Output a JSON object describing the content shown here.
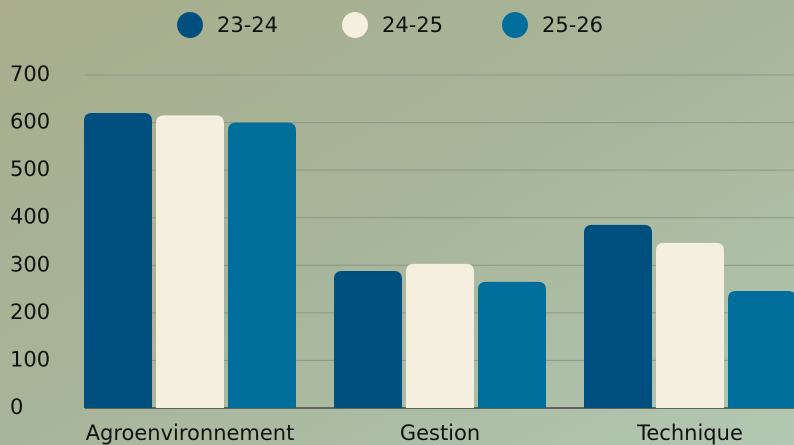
{
  "chart_data": {
    "type": "bar",
    "categories": [
      "Agroenvironnement",
      "Gestion",
      "Technique"
    ],
    "series": [
      {
        "name": "23-24",
        "color": "#00507f",
        "values": [
          620,
          288,
          385
        ]
      },
      {
        "name": "24-25",
        "color": "#f5efdf",
        "values": [
          615,
          303,
          347
        ]
      },
      {
        "name": "25-26",
        "color": "#006e9a",
        "values": [
          600,
          265,
          246
        ]
      }
    ],
    "ylim": [
      0,
      700
    ],
    "yticks": [
      0,
      100,
      200,
      300,
      400,
      500,
      600,
      700
    ],
    "grid": true,
    "legend": "top"
  }
}
